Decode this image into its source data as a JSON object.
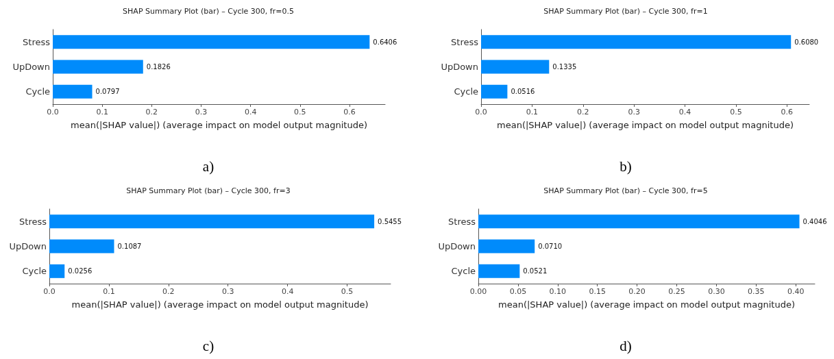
{
  "chart_data": [
    {
      "type": "bar",
      "orientation": "horizontal",
      "title": "SHAP Summary Plot (bar) – Cycle 300, fr=0.5",
      "xlabel": "mean(|SHAP value|) (average impact on model output magnitude)",
      "categories": [
        "Stress",
        "UpDown",
        "Cycle"
      ],
      "values": [
        0.6406,
        0.1826,
        0.0797
      ],
      "value_labels": [
        "0.6406",
        "0.1826",
        "0.0797"
      ],
      "color": "#008bfb",
      "xlim": [
        0,
        0.672
      ],
      "xticks": [
        {
          "value": 0,
          "label": "0.0"
        },
        {
          "value": 0.1,
          "label": "0.1"
        },
        {
          "value": 0.2,
          "label": "0.2"
        },
        {
          "value": 0.3,
          "label": "0.3"
        },
        {
          "value": 0.4,
          "label": "0.4"
        },
        {
          "value": 0.5,
          "label": "0.5"
        },
        {
          "value": 0.6,
          "label": "0.6"
        }
      ],
      "grid": false,
      "annotations": [
        "a)"
      ]
    },
    {
      "type": "bar",
      "orientation": "horizontal",
      "title": "SHAP Summary Plot (bar) – Cycle 300, fr=1",
      "xlabel": "mean(|SHAP value|) (average impact on model output magnitude)",
      "categories": [
        "Stress",
        "UpDown",
        "Cycle"
      ],
      "values": [
        0.608,
        0.1335,
        0.0516
      ],
      "value_labels": [
        "0.6080",
        "0.1335",
        "0.0516"
      ],
      "color": "#008bfb",
      "xlim": [
        0,
        0.644
      ],
      "xticks": [
        {
          "value": 0,
          "label": "0.0"
        },
        {
          "value": 0.1,
          "label": "0.1"
        },
        {
          "value": 0.2,
          "label": "0.2"
        },
        {
          "value": 0.3,
          "label": "0.3"
        },
        {
          "value": 0.4,
          "label": "0.4"
        },
        {
          "value": 0.5,
          "label": "0.5"
        },
        {
          "value": 0.6,
          "label": "0.6"
        }
      ],
      "grid": false,
      "annotations": [
        "b)"
      ]
    },
    {
      "type": "bar",
      "orientation": "horizontal",
      "title": "SHAP Summary Plot (bar) – Cycle 300, fr=3",
      "xlabel": "mean(|SHAP value|) (average impact on model output magnitude)",
      "categories": [
        "Stress",
        "UpDown",
        "Cycle"
      ],
      "values": [
        0.5455,
        0.1087,
        0.0256
      ],
      "value_labels": [
        "0.5455",
        "0.1087",
        "0.0256"
      ],
      "color": "#008bfb",
      "xlim": [
        0,
        0.573
      ],
      "xticks": [
        {
          "value": 0,
          "label": "0.0"
        },
        {
          "value": 0.1,
          "label": "0.1"
        },
        {
          "value": 0.2,
          "label": "0.2"
        },
        {
          "value": 0.3,
          "label": "0.3"
        },
        {
          "value": 0.4,
          "label": "0.4"
        },
        {
          "value": 0.5,
          "label": "0.5"
        }
      ],
      "grid": false,
      "annotations": [
        "c)"
      ]
    },
    {
      "type": "bar",
      "orientation": "horizontal",
      "title": "SHAP Summary Plot (bar) – Cycle 300, fr=5",
      "xlabel": "mean(|SHAP value|) (average impact on model output magnitude)",
      "categories": [
        "Stress",
        "UpDown",
        "Cycle"
      ],
      "values": [
        0.4046,
        0.071,
        0.0521
      ],
      "value_labels": [
        "0.4046",
        "0.0710",
        "0.0521"
      ],
      "color": "#008bfb",
      "xlim": [
        0,
        0.424
      ],
      "xticks": [
        {
          "value": 0,
          "label": "0.00"
        },
        {
          "value": 0.05,
          "label": "0.05"
        },
        {
          "value": 0.1,
          "label": "0.10"
        },
        {
          "value": 0.15,
          "label": "0.15"
        },
        {
          "value": 0.2,
          "label": "0.20"
        },
        {
          "value": 0.25,
          "label": "0.25"
        },
        {
          "value": 0.3,
          "label": "0.30"
        },
        {
          "value": 0.35,
          "label": "0.35"
        },
        {
          "value": 0.4,
          "label": "0.40"
        }
      ],
      "grid": false,
      "annotations": [
        "d)"
      ]
    }
  ]
}
